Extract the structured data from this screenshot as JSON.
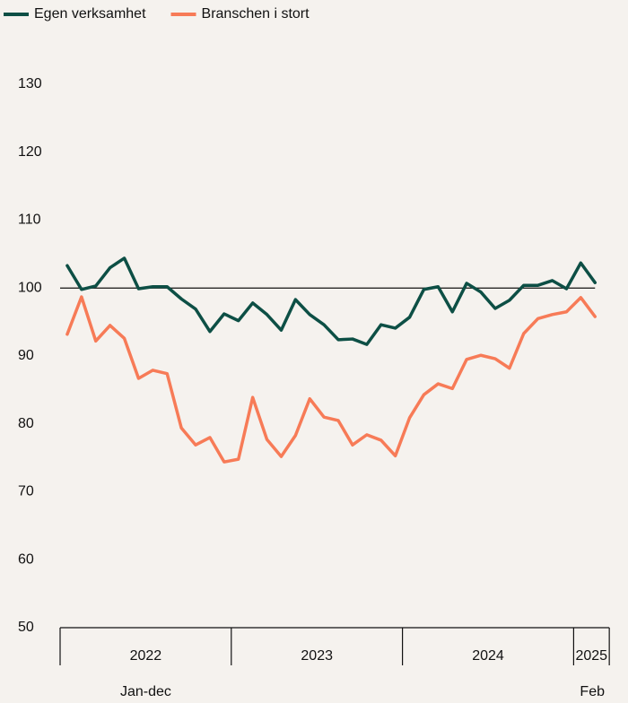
{
  "chart_data": {
    "type": "line",
    "categories": [
      null,
      null,
      null,
      null,
      null,
      null,
      null,
      null,
      null,
      null,
      null,
      null,
      null,
      null,
      null,
      null,
      null,
      null,
      null,
      null,
      null,
      null,
      null,
      null,
      null,
      null,
      null,
      null,
      null,
      null,
      null,
      null,
      null,
      null,
      null,
      null,
      null,
      null
    ],
    "year_groups": [
      {
        "label": "2022",
        "months": 12,
        "sublabel": "Jan-dec"
      },
      {
        "label": "2023",
        "months": 12
      },
      {
        "label": "2024",
        "months": 12
      },
      {
        "label": "2025",
        "months": 2,
        "sublabel": "Feb"
      }
    ],
    "series": [
      {
        "name": "Egen verksamhet",
        "color": "#0d4f45",
        "values": [
          103.3,
          99.8,
          100.3,
          103,
          104.4,
          99.9,
          100.2,
          100.2,
          98.4,
          96.9,
          93.6,
          96.2,
          95.2,
          97.8,
          96.1,
          93.8,
          98.3,
          96.1,
          94.6,
          92.4,
          92.5,
          91.7,
          94.6,
          94.1,
          95.7,
          99.8,
          100.2,
          96.5,
          100.7,
          99.4,
          97,
          98.2,
          100.4,
          100.4,
          101.1,
          99.9,
          103.7,
          100.8
        ]
      },
      {
        "name": "Branschen i stort",
        "color": "#f77b57",
        "values": [
          93.2,
          98.7,
          92.2,
          94.5,
          92.6,
          86.7,
          87.9,
          87.4,
          79.4,
          76.9,
          78,
          74.4,
          74.8,
          83.9,
          77.7,
          75.2,
          78.3,
          83.7,
          81,
          80.5,
          76.9,
          78.4,
          77.6,
          75.3,
          80.9,
          84.3,
          85.9,
          85.2,
          89.5,
          90.1,
          89.6,
          88.2,
          93.3,
          95.5,
          96.1,
          96.5,
          98.6,
          95.8
        ]
      }
    ],
    "ylim": [
      50,
      130
    ],
    "yticks": [
      50,
      60,
      70,
      80,
      90,
      100,
      110,
      120,
      130
    ],
    "reference_line": 100,
    "grid": false,
    "legend": "top-left"
  }
}
